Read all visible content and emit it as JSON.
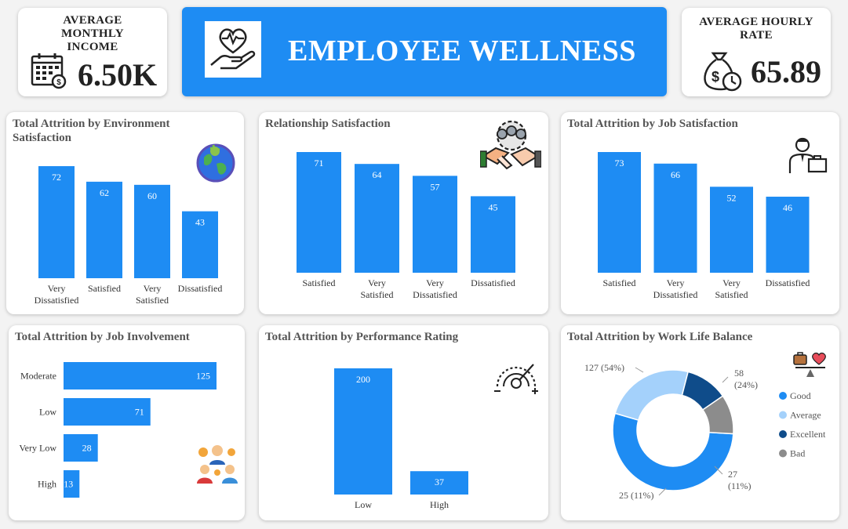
{
  "kpis": {
    "income": {
      "title": "AVERAGE MONTHLY INCOME",
      "value": "6.50K",
      "icon": "calendar-money-icon"
    },
    "hourly": {
      "title": "AVERAGE HOURLY RATE",
      "value": "65.89",
      "icon": "money-bag-clock-icon"
    }
  },
  "banner": {
    "title": "EMPLOYEE WELLNESS",
    "icon": "heart-hand-icon"
  },
  "colors": {
    "bar": "#1e8cf3",
    "good": "#1e8cf3",
    "average": "#a4d1fb",
    "excellent": "#0f4c8a",
    "bad": "#8c8c8c"
  },
  "chart_data": [
    {
      "id": "env",
      "type": "bar",
      "title": "Total Attrition by Environment Satisfaction",
      "categories": [
        "Very Dissatisfied",
        "Satisfied",
        "Very Satisfied",
        "Dissatisfied"
      ],
      "values": [
        72,
        62,
        60,
        43
      ],
      "icon": "earth-icon"
    },
    {
      "id": "rel",
      "type": "bar",
      "title": "Relationship Satisfaction",
      "categories": [
        "Satisfied",
        "Very Satisfied",
        "Very Dissatisfied",
        "Dissatisfied"
      ],
      "values": [
        71,
        64,
        57,
        45
      ],
      "icon": "handshake-team-icon"
    },
    {
      "id": "job",
      "type": "bar",
      "title": "Total Attrition by Job Satisfaction",
      "categories": [
        "Satisfied",
        "Very Dissatisfied",
        "Very Satisfied",
        "Dissatisfied"
      ],
      "values": [
        73,
        66,
        52,
        46
      ],
      "icon": "businessman-icon"
    },
    {
      "id": "inv",
      "type": "bar",
      "orientation": "horizontal",
      "title": "Total Attrition by Job Involvement",
      "categories": [
        "Moderate",
        "Low",
        "Very Low",
        "High"
      ],
      "values": [
        125,
        71,
        28,
        13
      ],
      "icon": "team-gears-icon"
    },
    {
      "id": "perf",
      "type": "bar",
      "title": "Total Attrition by Performance Rating",
      "categories": [
        "Low",
        "High"
      ],
      "values": [
        200,
        37
      ],
      "icon": "performance-gauge-icon"
    },
    {
      "id": "wlb",
      "type": "pie",
      "donut": true,
      "title": "Total Attrition by Work Life Balance",
      "slices": [
        {
          "label": "Good",
          "value": 127,
          "pct": "(54%)",
          "color": "#1e8cf3"
        },
        {
          "label": "Average",
          "value": 58,
          "pct": "(24%)",
          "color": "#a4d1fb"
        },
        {
          "label": "Excellent",
          "value": 27,
          "pct": "(11%)",
          "color": "#0f4c8a"
        },
        {
          "label": "Bad",
          "value": 25,
          "pct": "(11%)",
          "color": "#8c8c8c"
        }
      ],
      "legend": "right",
      "icon": "work-life-scale-icon"
    }
  ]
}
